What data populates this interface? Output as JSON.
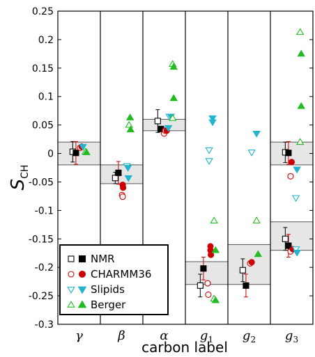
{
  "chart_data": {
    "type": "scatter",
    "ylabel": "S",
    "ylabel_sub": "CH",
    "xlabel": "carbon label",
    "ylim": [
      -0.3,
      0.25
    ],
    "yticks": [
      0.25,
      0.2,
      0.15,
      0.1,
      0.05,
      0,
      -0.05,
      -0.1,
      -0.15,
      -0.2,
      -0.25,
      -0.3
    ],
    "yticklabels": [
      "0.25",
      "0.2",
      "0.15",
      "0.1",
      "0.05",
      "0",
      "-0.05",
      "-0.1",
      "-0.15",
      "-0.2",
      "-0.25",
      "-0.3"
    ],
    "categories": [
      {
        "label": "γ",
        "sub": ""
      },
      {
        "label": "β",
        "sub": ""
      },
      {
        "label": "α",
        "sub": ""
      },
      {
        "label": "g",
        "sub": "1"
      },
      {
        "label": "g",
        "sub": "2"
      },
      {
        "label": "g",
        "sub": "3"
      }
    ],
    "grid": false,
    "legend_position": "lower-left",
    "colors": {
      "nmr": "#000000",
      "charmm": "#cc0000",
      "slipids": "#22b4cc",
      "berger": "#22bb22",
      "band_fill": "#e6e6e6",
      "band_edge": "#555555"
    },
    "experimental_bands": [
      {
        "category": 0,
        "y_low": -0.02,
        "y_high": 0.02
      },
      {
        "category": 1,
        "y_low": -0.053,
        "y_high": -0.02
      },
      {
        "category": 2,
        "y_low": 0.04,
        "y_high": 0.06
      },
      {
        "category": 3,
        "y_low": -0.23,
        "y_high": -0.19
      },
      {
        "category": 4,
        "y_low": -0.23,
        "y_high": -0.16
      },
      {
        "category": 5,
        "y_low": -0.02,
        "y_high": 0.02
      },
      {
        "category": 5,
        "y_low": -0.17,
        "y_high": -0.12
      }
    ],
    "series": [
      {
        "name": "NMR",
        "marker": "square",
        "fill": "open",
        "color": "#000000",
        "points": [
          {
            "x": 0,
            "dx": -0.3,
            "y": 0.003,
            "err": 0.018
          },
          {
            "x": 1,
            "dx": -0.3,
            "y": -0.043,
            "err": 0.01
          },
          {
            "x": 2,
            "dx": -0.3,
            "y": 0.057,
            "err": 0.02
          },
          {
            "x": 3,
            "dx": -0.3,
            "y": -0.232,
            "err": 0.02
          },
          {
            "x": 4,
            "dx": -0.3,
            "y": -0.205,
            "err": 0.02
          },
          {
            "x": 5,
            "dx": -0.3,
            "y": 0.002,
            "err": 0.018
          },
          {
            "x": 5,
            "dx": -0.3,
            "y": -0.15,
            "err": 0.02
          }
        ]
      },
      {
        "name": "NMR",
        "marker": "square",
        "fill": "filled",
        "color": "#000000",
        "points": [
          {
            "x": 0,
            "dx": -0.15,
            "y": 0.001,
            "err": 0.02
          },
          {
            "x": 1,
            "dx": -0.15,
            "y": -0.034,
            "err": 0.02
          },
          {
            "x": 2,
            "dx": -0.15,
            "y": 0.043,
            "err": 0.0
          },
          {
            "x": 3,
            "dx": -0.15,
            "y": -0.202,
            "err": 0.02
          },
          {
            "x": 4,
            "dx": -0.15,
            "y": -0.232,
            "err": 0.02
          },
          {
            "x": 5,
            "dx": -0.15,
            "y": 0.001,
            "err": 0.02
          },
          {
            "x": 5,
            "dx": -0.15,
            "y": -0.162,
            "err": 0.02
          }
        ]
      },
      {
        "name": "CHARMM36",
        "marker": "circle",
        "fill": "open",
        "color": "#cc0000",
        "points": [
          {
            "x": 0,
            "dx": 0.05,
            "y": 0.01
          },
          {
            "x": 1,
            "dx": 0.02,
            "y": -0.073
          },
          {
            "x": 1,
            "dx": 0.05,
            "y": -0.076
          },
          {
            "x": 2,
            "dx": 0.0,
            "y": 0.035
          },
          {
            "x": 2,
            "dx": 0.05,
            "y": 0.04
          },
          {
            "x": 3,
            "dx": 0.05,
            "y": -0.228
          },
          {
            "x": 3,
            "dx": 0.08,
            "y": -0.248
          },
          {
            "x": 4,
            "dx": 0.05,
            "y": -0.193
          },
          {
            "x": 5,
            "dx": -0.05,
            "y": -0.04
          },
          {
            "x": 5,
            "dx": -0.05,
            "y": -0.172
          }
        ]
      },
      {
        "name": "CHARMM36",
        "marker": "circle",
        "fill": "filled",
        "color": "#cc0000",
        "points": [
          {
            "x": 0,
            "dx": 0.12,
            "y": 0.012
          },
          {
            "x": 1,
            "dx": 0.05,
            "y": -0.055
          },
          {
            "x": 1,
            "dx": 0.07,
            "y": -0.06
          },
          {
            "x": 2,
            "dx": 0.12,
            "y": 0.04
          },
          {
            "x": 3,
            "dx": 0.18,
            "y": -0.163
          },
          {
            "x": 3,
            "dx": 0.18,
            "y": -0.17
          },
          {
            "x": 3,
            "dx": 0.2,
            "y": -0.178
          },
          {
            "x": 4,
            "dx": 0.12,
            "y": -0.191
          },
          {
            "x": 5,
            "dx": 0.0,
            "y": -0.015
          },
          {
            "x": 5,
            "dx": 0.05,
            "y": -0.168
          }
        ]
      },
      {
        "name": "Slipids",
        "marker": "tri_down",
        "fill": "open",
        "color": "#22b4cc",
        "points": [
          {
            "x": 1,
            "dx": 0.25,
            "y": -0.022
          },
          {
            "x": 2,
            "dx": 0.25,
            "y": 0.065
          },
          {
            "x": 3,
            "dx": 0.12,
            "y": 0.006
          },
          {
            "x": 3,
            "dx": 0.12,
            "y": -0.013
          },
          {
            "x": 4,
            "dx": 0.12,
            "y": 0.002
          },
          {
            "x": 5,
            "dx": 0.2,
            "y": -0.078
          },
          {
            "x": 5,
            "dx": 0.2,
            "y": -0.168
          }
        ]
      },
      {
        "name": "Slipids",
        "marker": "tri_down",
        "fill": "filled",
        "color": "#22b4cc",
        "points": [
          {
            "x": 0,
            "dx": 0.18,
            "y": 0.012
          },
          {
            "x": 1,
            "dx": 0.3,
            "y": -0.025
          },
          {
            "x": 1,
            "dx": 0.32,
            "y": -0.043
          },
          {
            "x": 2,
            "dx": 0.2,
            "y": 0.045
          },
          {
            "x": 2,
            "dx": 0.32,
            "y": 0.065
          },
          {
            "x": 3,
            "dx": 0.28,
            "y": 0.062
          },
          {
            "x": 3,
            "dx": 0.28,
            "y": 0.055
          },
          {
            "x": 4,
            "dx": 0.35,
            "y": 0.035
          },
          {
            "x": 5,
            "dx": 0.25,
            "y": -0.028
          },
          {
            "x": 5,
            "dx": 0.25,
            "y": -0.174
          }
        ]
      },
      {
        "name": "Berger",
        "marker": "tri_up",
        "fill": "open",
        "color": "#22bb22",
        "points": [
          {
            "x": 0,
            "dx": 0.3,
            "y": 0.003
          },
          {
            "x": 1,
            "dx": 0.35,
            "y": 0.05
          },
          {
            "x": 2,
            "dx": 0.4,
            "y": 0.157
          },
          {
            "x": 2,
            "dx": 0.4,
            "y": 0.062
          },
          {
            "x": 3,
            "dx": 0.35,
            "y": -0.118
          },
          {
            "x": 3,
            "dx": 0.35,
            "y": -0.255
          },
          {
            "x": 4,
            "dx": 0.35,
            "y": -0.118
          },
          {
            "x": 5,
            "dx": 0.4,
            "y": 0.213
          },
          {
            "x": 5,
            "dx": 0.4,
            "y": 0.02
          }
        ]
      },
      {
        "name": "Berger",
        "marker": "tri_up",
        "fill": "filled",
        "color": "#22bb22",
        "points": [
          {
            "x": 0,
            "dx": 0.35,
            "y": 0.002
          },
          {
            "x": 1,
            "dx": 0.4,
            "y": 0.063
          },
          {
            "x": 1,
            "dx": 0.42,
            "y": 0.042
          },
          {
            "x": 2,
            "dx": 0.45,
            "y": 0.152
          },
          {
            "x": 2,
            "dx": 0.45,
            "y": 0.097
          },
          {
            "x": 3,
            "dx": 0.42,
            "y": -0.17
          },
          {
            "x": 3,
            "dx": 0.42,
            "y": -0.258
          },
          {
            "x": 4,
            "dx": 0.42,
            "y": -0.177
          },
          {
            "x": 5,
            "dx": 0.45,
            "y": 0.175
          },
          {
            "x": 5,
            "dx": 0.45,
            "y": 0.083
          }
        ]
      }
    ],
    "legend": {
      "entries": [
        {
          "label": "NMR",
          "marker": "square",
          "color": "#000000"
        },
        {
          "label": "CHARMM36",
          "marker": "circle",
          "color": "#cc0000"
        },
        {
          "label": "Slipids",
          "marker": "tri_down",
          "color": "#22b4cc"
        },
        {
          "label": "Berger",
          "marker": "tri_up",
          "color": "#22bb22"
        }
      ]
    }
  }
}
